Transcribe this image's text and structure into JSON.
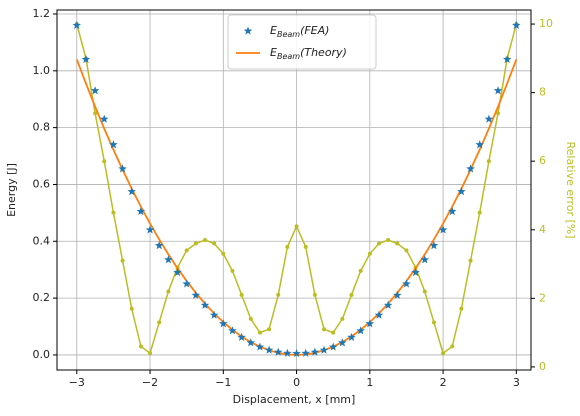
{
  "chart_data": {
    "type": "line",
    "x": [
      -3,
      -2.875,
      -2.75,
      -2.625,
      -2.5,
      -2.375,
      -2.25,
      -2.125,
      -2,
      -1.875,
      -1.75,
      -1.625,
      -1.5,
      -1.375,
      -1.25,
      -1.125,
      -1,
      -0.875,
      -0.75,
      -0.625,
      -0.5,
      -0.375,
      -0.25,
      -0.125,
      0,
      0.125,
      0.25,
      0.375,
      0.5,
      0.625,
      0.75,
      0.875,
      1,
      1.125,
      1.25,
      1.375,
      1.5,
      1.625,
      1.75,
      1.875,
      2,
      2.125,
      2.25,
      2.375,
      2.5,
      2.625,
      2.75,
      2.875,
      3
    ],
    "series": [
      {
        "name": "E_Beam(FEA)",
        "color": "#1f77b4",
        "marker": "star",
        "values": [
          1.16,
          1.04,
          0.93,
          0.83,
          0.74,
          0.655,
          0.575,
          0.505,
          0.44,
          0.385,
          0.335,
          0.29,
          0.25,
          0.21,
          0.175,
          0.14,
          0.11,
          0.085,
          0.062,
          0.043,
          0.028,
          0.017,
          0.01,
          0.006,
          0.005,
          0.006,
          0.01,
          0.017,
          0.028,
          0.043,
          0.062,
          0.085,
          0.11,
          0.14,
          0.175,
          0.21,
          0.25,
          0.29,
          0.335,
          0.385,
          0.44,
          0.505,
          0.575,
          0.655,
          0.74,
          0.83,
          0.93,
          1.04,
          1.16
        ]
      },
      {
        "name": "E_Beam(Theory)",
        "color": "#ff7f0e",
        "marker": "none",
        "values": [
          1.04,
          0.9555,
          0.874,
          0.7966,
          0.7225,
          0.652,
          0.5852,
          0.522,
          0.4624,
          0.4064,
          0.354,
          0.3053,
          0.2601,
          0.2186,
          0.1806,
          0.1463,
          0.1156,
          0.0885,
          0.065,
          0.0452,
          0.0289,
          0.0163,
          0.0072,
          0.0018,
          0,
          0.0018,
          0.0072,
          0.0163,
          0.0289,
          0.0452,
          0.065,
          0.0885,
          0.1156,
          0.1463,
          0.1806,
          0.2186,
          0.2601,
          0.3053,
          0.354,
          0.4064,
          0.4624,
          0.522,
          0.5852,
          0.652,
          0.7225,
          0.7966,
          0.874,
          0.9555,
          1.04
        ]
      },
      {
        "color": "#bcbd22",
        "marker": "dot",
        "axis": "y2",
        "values": [
          10,
          9,
          7.4,
          6,
          4.5,
          3.1,
          1.7,
          0.6,
          0.4,
          1.3,
          2.2,
          2.9,
          3.4,
          3.6,
          3.7,
          3.6,
          3.3,
          2.8,
          2.1,
          1.4,
          1.0,
          1.1,
          2.1,
          3.5,
          4.1,
          3.5,
          2.1,
          1.1,
          1.0,
          1.4,
          2.1,
          2.8,
          3.3,
          3.6,
          3.7,
          3.6,
          3.4,
          2.9,
          2.2,
          1.3,
          0.4,
          0.6,
          1.7,
          3.1,
          4.5,
          6,
          7.4,
          9,
          10
        ]
      }
    ],
    "x_label": "Displacement, x [mm]",
    "y_label": "Energy [J]",
    "y2_label": "Relative error [%]",
    "xlim": [
      -3.27,
      3.2
    ],
    "xticks": [
      {
        "value": -3,
        "label": "−3"
      },
      {
        "value": -2,
        "label": "−2"
      },
      {
        "value": -1,
        "label": "−1"
      },
      0,
      1,
      2,
      3
    ],
    "ylim": [
      -0.053,
      1.214
    ],
    "yticks": [
      {
        "value": 0,
        "label": "0.0"
      },
      0.2,
      0.4,
      0.6,
      0.8,
      {
        "value": 1,
        "label": "1.0"
      },
      1.2
    ],
    "y2lim": [
      -0.09,
      10.41
    ],
    "y2ticks": [
      0,
      2,
      4,
      6,
      8,
      10
    ],
    "grid": true,
    "legend": "upper center"
  }
}
